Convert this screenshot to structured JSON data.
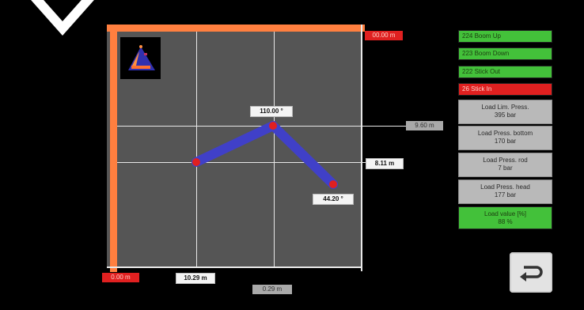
{
  "plot": {
    "top_right_value": "00.00 m",
    "bottom_left_value": "0.00 m",
    "upper_right_side_value": "9.60 m",
    "right_side_value": "8.11 m",
    "bottom_value": "10.29 m",
    "bottom_gray_value": "0.29 m",
    "joint_angle_top": "110.00 °",
    "joint_angle_bottom": "44.20 °"
  },
  "controls": [
    {
      "label": "224 Boom Up",
      "state": "green"
    },
    {
      "label": "223 Boom Down",
      "state": "green"
    },
    {
      "label": "222 Stick Out",
      "state": "green"
    },
    {
      "label": "26 Stick In",
      "state": "red"
    }
  ],
  "readouts": [
    {
      "line1": "Load Lim. Press.",
      "line2": "395 bar"
    },
    {
      "line1": "Load Press. bottom",
      "line2": "170 bar"
    },
    {
      "line1": "Load Press. rod",
      "line2": "7 bar"
    },
    {
      "line1": "Load Press. head",
      "line2": "177 bar"
    }
  ],
  "load_value": {
    "line1": "Load value [%]",
    "line2": "88 %"
  },
  "colors": {
    "accent_orange": "#ff7f3f",
    "plot_bg": "#555555",
    "arm_blue": "#4040c8",
    "joint_red": "#e02020",
    "ok_green": "#43c13a",
    "alarm_red": "#e02020"
  },
  "icons": {
    "top_left": "chevron-down-icon",
    "logo": "excavator-logo-icon",
    "back": "return-icon"
  }
}
